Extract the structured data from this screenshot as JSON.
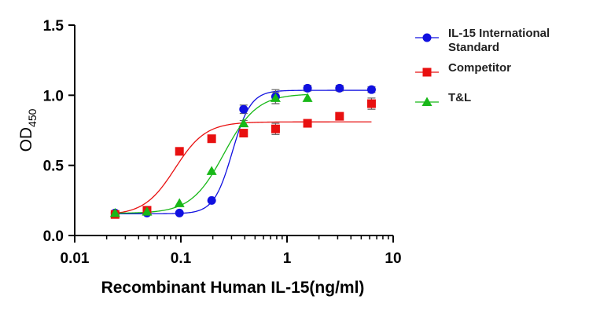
{
  "chart_data": {
    "type": "scatter",
    "title": "",
    "xlabel": "Recombinant Human IL-15(ng/ml)",
    "ylabel_main": "OD",
    "ylabel_sub": "450",
    "xscale": "log",
    "xlim": [
      0.01,
      10
    ],
    "ylim": [
      0.0,
      1.5
    ],
    "x_ticks": [
      {
        "value": 0.01,
        "label": "0.01"
      },
      {
        "value": 0.1,
        "label": "0.1"
      },
      {
        "value": 1,
        "label": "1"
      },
      {
        "value": 10,
        "label": "10"
      }
    ],
    "y_ticks": [
      {
        "value": 0.0,
        "label": "0.0"
      },
      {
        "value": 0.5,
        "label": "0.5"
      },
      {
        "value": 1.0,
        "label": "1.0"
      },
      {
        "value": 1.5,
        "label": "1.5"
      }
    ],
    "legend_position": "top-right",
    "series": [
      {
        "name_lines": [
          "IL-15 International",
          "Standard"
        ],
        "marker": "circle",
        "color": "#1010e0",
        "x": [
          0.024,
          0.048,
          0.097,
          0.195,
          0.39,
          0.78,
          1.56,
          3.125,
          6.25
        ],
        "y": [
          0.16,
          0.16,
          0.16,
          0.25,
          0.9,
          0.99,
          1.05,
          1.05,
          1.04
        ],
        "err": [
          0.01,
          0.01,
          0.01,
          0.01,
          0.03,
          0.05,
          0.02,
          0.02,
          0.02
        ],
        "fit": {
          "bottom": 0.155,
          "top": 1.035,
          "ec50": 0.305,
          "hill": 5.0
        }
      },
      {
        "name_lines": [
          "Competitor"
        ],
        "marker": "square",
        "color": "#e81010",
        "x": [
          0.024,
          0.048,
          0.097,
          0.195,
          0.39,
          0.78,
          1.56,
          3.125,
          6.25
        ],
        "y": [
          0.15,
          0.18,
          0.6,
          0.69,
          0.73,
          0.76,
          0.8,
          0.85,
          0.94
        ],
        "err": [
          0.01,
          0.01,
          0.01,
          0.01,
          0.02,
          0.04,
          0.02,
          0.02,
          0.04
        ],
        "fit": {
          "bottom": 0.145,
          "top": 0.81,
          "ec50": 0.088,
          "hill": 3.0
        }
      },
      {
        "name_lines": [
          "T&L"
        ],
        "marker": "triangle",
        "color": "#18b818",
        "x": [
          0.024,
          0.048,
          0.097,
          0.195,
          0.39,
          0.78,
          1.56
        ],
        "y": [
          0.16,
          0.17,
          0.23,
          0.46,
          0.8,
          0.98,
          0.98
        ],
        "err": [
          0.01,
          0.01,
          0.01,
          0.01,
          0.02,
          0.04,
          0.01
        ],
        "fit": {
          "bottom": 0.158,
          "top": 1.01,
          "ec50": 0.255,
          "hill": 2.8
        }
      }
    ]
  }
}
